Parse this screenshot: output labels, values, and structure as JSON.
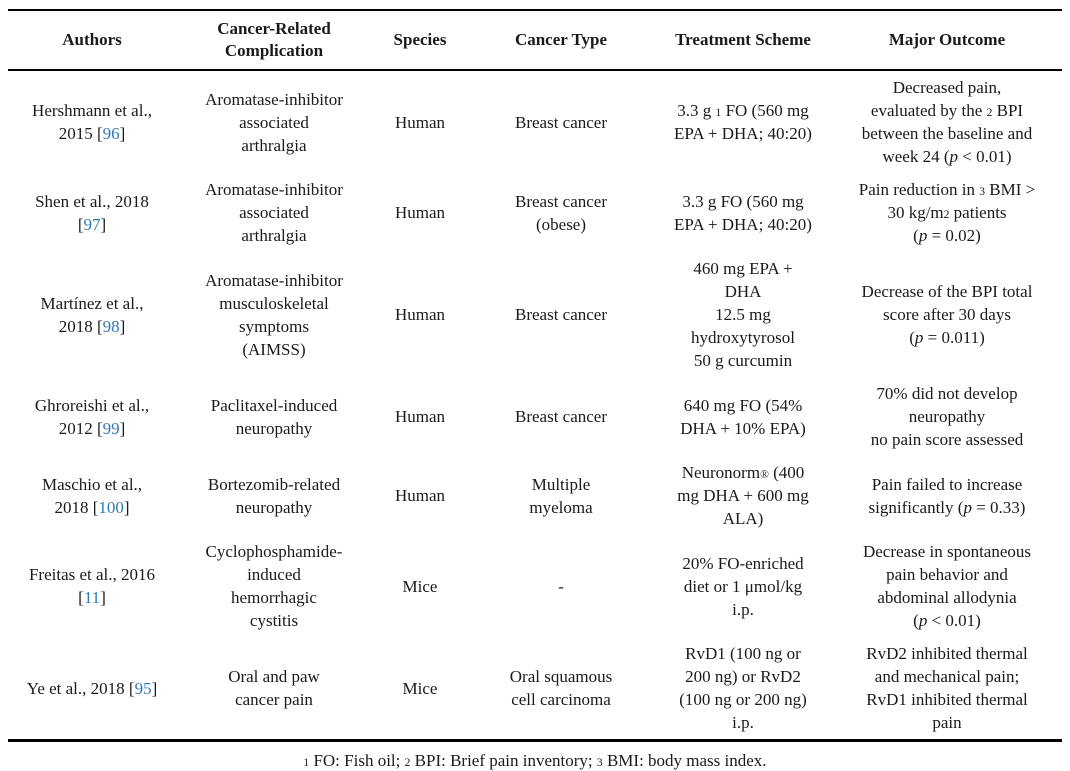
{
  "colors": {
    "citation_blue": "#2d7bb6",
    "text": "#1a1a1a",
    "rule": "#000000",
    "background": "#ffffff"
  },
  "table": {
    "headers": [
      "Authors",
      "Cancer-Related\nComplication",
      "Species",
      "Cancer Type",
      "Treatment Scheme",
      "Major Outcome"
    ],
    "rows": [
      {
        "authors": "Hershmann et al.,\n2015 [96]",
        "complication": "Aromatase-inhibitor\nassociated\narthralgia",
        "species": "Human",
        "cancer_type": "Breast cancer",
        "treatment": "3.3 g ^{1} FO (560 mg\nEPA + DHA; 40:20)",
        "outcome": "Decreased pain,\nevaluated by the ^{2} BPI\nbetween the baseline and\nweek 24 (*p* < 0.01)"
      },
      {
        "authors": "Shen et al., 2018\n[97]",
        "complication": "Aromatase-inhibitor\nassociated\narthralgia",
        "species": "Human",
        "cancer_type": "Breast cancer\n(obese)",
        "treatment": "3.3 g FO (560 mg\nEPA + DHA; 40:20)",
        "outcome": "Pain reduction in ^{3} BMI >\n30 kg/m^{2} patients\n(*p* = 0.02)"
      },
      {
        "authors": "Martínez et al.,\n2018 [98]",
        "complication": "Aromatase-inhibitor\nmusculoskeletal\nsymptoms\n(AIMSS)",
        "species": "Human",
        "cancer_type": "Breast cancer",
        "treatment": "460 mg EPA +\nDHA\n12.5 mg\nhydroxytyrosol\n50 g curcumin",
        "outcome": "Decrease of the BPI total\nscore after 30 days\n(*p* = 0.011)"
      },
      {
        "authors": "Ghroreishi et al.,\n2012 [99]",
        "complication": "Paclitaxel-induced\nneuropathy",
        "species": "Human",
        "cancer_type": "Breast cancer",
        "treatment": "640 mg FO (54%\nDHA + 10% EPA)",
        "outcome": "70% did not develop\nneuropathy\nno pain score assessed"
      },
      {
        "authors": "Maschio et al.,\n2018 [100]",
        "complication": "Bortezomib-related\nneuropathy",
        "species": "Human",
        "cancer_type": "Multiple\nmyeloma",
        "treatment": "Neuronorm^{®} (400\nmg DHA + 600 mg\nALA)",
        "outcome": "Pain failed to increase\nsignificantly (*p* = 0.33)"
      },
      {
        "authors": "Freitas et al., 2016\n[11]",
        "complication": "Cyclophosphamide-induced\nhemorrhagic\ncystitis",
        "species": "Mice",
        "cancer_type": "-",
        "treatment": "20% FO-enriched\ndiet or 1 μmol/kg\ni.p.",
        "outcome": "Decrease in spontaneous\npain behavior and\nabdominal allodynia\n(*p* < 0.01)"
      },
      {
        "authors": "Ye et al., 2018 [95]",
        "complication": "Oral and paw\ncancer pain",
        "species": "Mice",
        "cancer_type": "Oral squamous\ncell carcinoma",
        "treatment": "RvD1 (100 ng or\n200 ng) or RvD2\n(100 ng or 200 ng)\ni.p.",
        "outcome": "RvD2 inhibited thermal\nand mechanical pain;\nRvD1 inhibited thermal\npain"
      }
    ],
    "footnote": "^{1} FO: Fish oil; ^{2} BPI: Brief pain inventory; ^{3} BMI: body mass index."
  }
}
